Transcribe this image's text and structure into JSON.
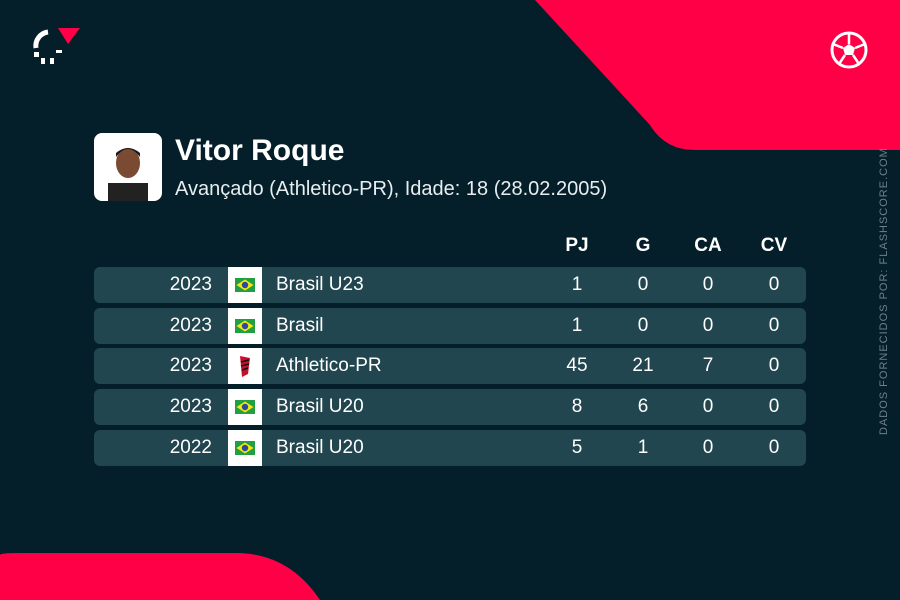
{
  "player": {
    "name": "Vitor Roque",
    "subtitle": "Avançado (Athletico-PR), Idade: 18 (28.02.2005)"
  },
  "source": "DADOS FORNECIDOS POR: FLASHSCORE.COM",
  "colors": {
    "background": "#041f29",
    "accent": "#ff0046",
    "row": "#21464f"
  },
  "table": {
    "headers": [
      "PJ",
      "G",
      "CA",
      "CV"
    ],
    "rows": [
      {
        "year": "2023",
        "team": "Brasil U23",
        "icon": "brazil-flag",
        "pj": "1",
        "g": "0",
        "ca": "0",
        "cv": "0"
      },
      {
        "year": "2023",
        "team": "Brasil",
        "icon": "brazil-flag",
        "pj": "1",
        "g": "0",
        "ca": "0",
        "cv": "0"
      },
      {
        "year": "2023",
        "team": "Athletico-PR",
        "icon": "athletico-crest",
        "pj": "45",
        "g": "21",
        "ca": "7",
        "cv": "0"
      },
      {
        "year": "2023",
        "team": "Brasil U20",
        "icon": "brazil-flag",
        "pj": "8",
        "g": "6",
        "ca": "0",
        "cv": "0"
      },
      {
        "year": "2022",
        "team": "Brasil U20",
        "icon": "brazil-flag",
        "pj": "5",
        "g": "1",
        "ca": "0",
        "cv": "0"
      }
    ]
  }
}
